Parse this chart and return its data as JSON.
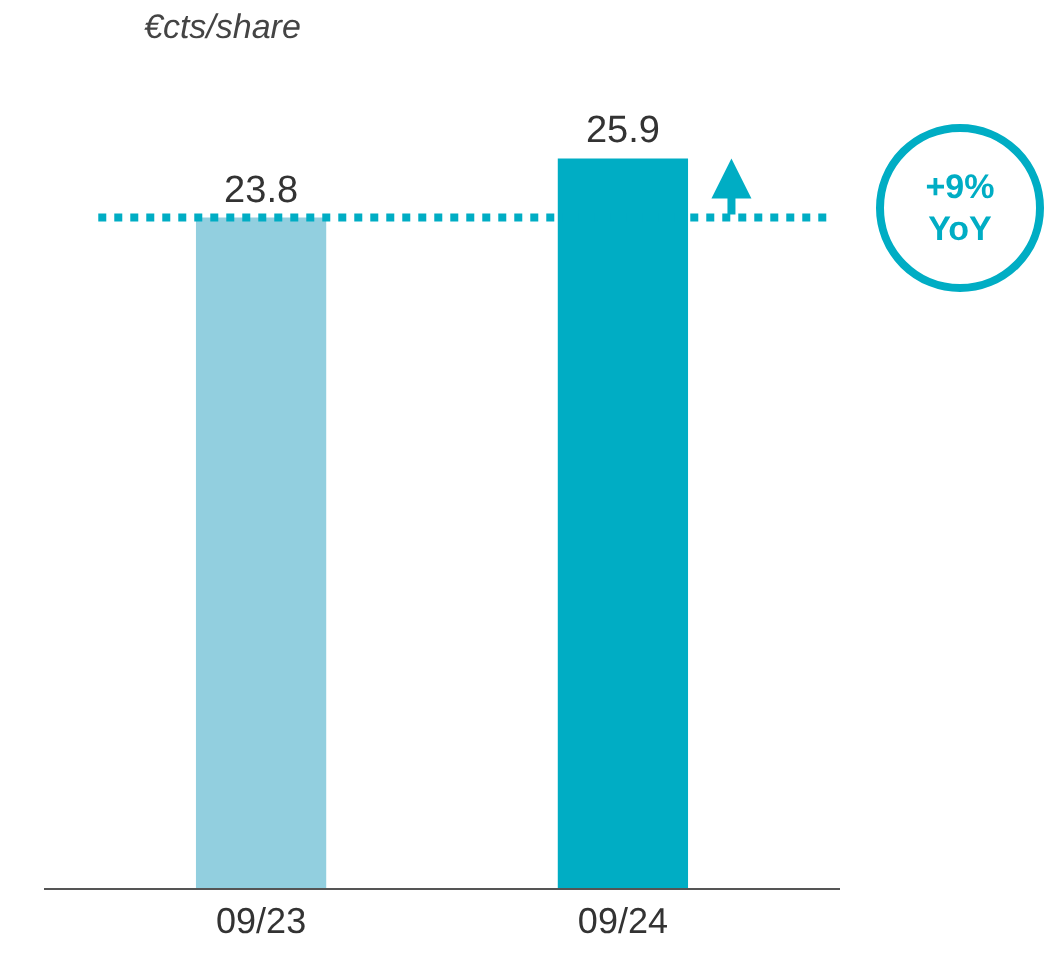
{
  "chart_data": {
    "type": "bar",
    "ylabel": "€cts/share",
    "categories": [
      "09/23",
      "09/24"
    ],
    "values": [
      23.8,
      25.9
    ],
    "colors": [
      "#92cfdf",
      "#00adc4"
    ],
    "data_labels": true,
    "ref_lines": [
      {
        "axis": "y",
        "value": 23.8,
        "color": "#00adc4",
        "line_style": "dotted"
      }
    ],
    "annotations": [
      "+9%\nYoY"
    ]
  }
}
